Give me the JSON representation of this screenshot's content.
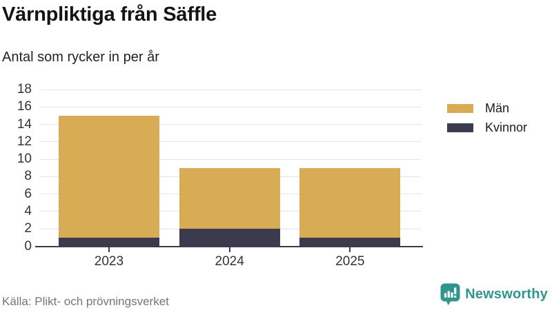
{
  "header": {
    "title": "Värnpliktiga från Säffle",
    "subtitle": "Antal som rycker in per år"
  },
  "chart_data": {
    "type": "bar",
    "stacked": true,
    "title": "Värnpliktiga från Säffle",
    "subtitle": "Antal som rycker in per år",
    "categories": [
      "2023",
      "2024",
      "2025"
    ],
    "series": [
      {
        "name": "Män",
        "values": [
          14,
          7,
          8
        ],
        "color": "#d8ab55"
      },
      {
        "name": "Kvinnor",
        "values": [
          1,
          2,
          1
        ],
        "color": "#3c3b4d"
      }
    ],
    "stack_order_bottom_to_top": [
      "Kvinnor",
      "Män"
    ],
    "totals": [
      15,
      9,
      9
    ],
    "ylim": [
      0,
      18
    ],
    "yticks": [
      0,
      2,
      4,
      6,
      8,
      10,
      12,
      14,
      16,
      18
    ],
    "xlabel": "",
    "ylabel": "",
    "grid": true,
    "legend_position": "right"
  },
  "footer": {
    "source": "Källa: Plikt- och prövningsverket",
    "brand": "Newsworthy"
  },
  "colors": {
    "axis": "#3c3b4d",
    "grid": "#e4e4e4",
    "tick_label": "#333333",
    "brand_teal": "#2e968c"
  }
}
